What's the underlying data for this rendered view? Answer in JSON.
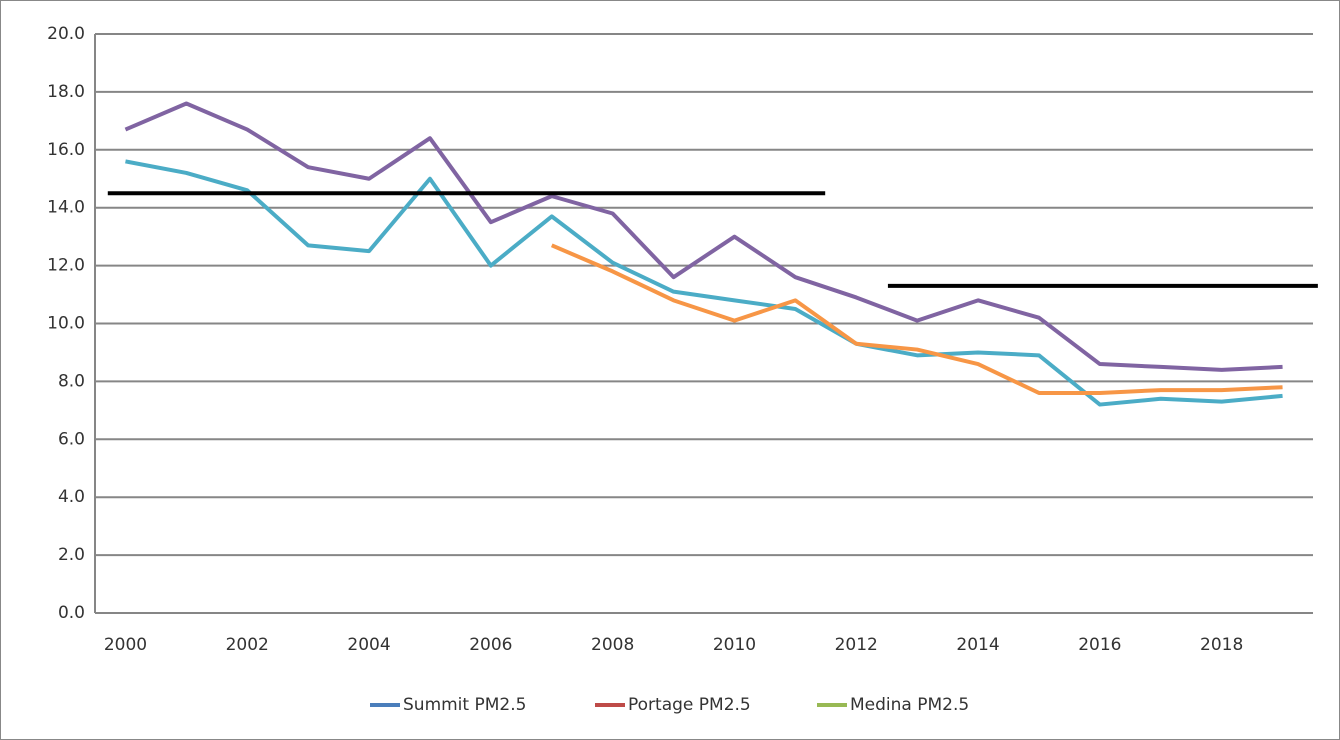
{
  "chart_data": {
    "type": "line",
    "x": [
      2000,
      2001,
      2002,
      2003,
      2004,
      2005,
      2006,
      2007,
      2008,
      2009,
      2010,
      2011,
      2012,
      2013,
      2014,
      2015,
      2016,
      2017,
      2018,
      2019
    ],
    "xlim": [
      1999.5,
      2019.5
    ],
    "xticks": [
      2000,
      2002,
      2004,
      2006,
      2008,
      2010,
      2012,
      2014,
      2016,
      2018
    ],
    "ylim": [
      0,
      20
    ],
    "yticks": [
      {
        "value": 0,
        "label": "0.0"
      },
      {
        "value": 2,
        "label": "2.0"
      },
      {
        "value": 4,
        "label": "4.0"
      },
      {
        "value": 6,
        "label": "6.0"
      },
      {
        "value": 8,
        "label": "8.0"
      },
      {
        "value": 10,
        "label": "10.0"
      },
      {
        "value": 12,
        "label": "12.0"
      },
      {
        "value": 14,
        "label": "14.0"
      },
      {
        "value": 16,
        "label": "16.0"
      },
      {
        "value": 18,
        "label": "18.0"
      },
      {
        "value": 20,
        "label": "20.0"
      }
    ],
    "grid": true,
    "legend": "bottom",
    "series": [
      {
        "name": "Summit PM2.5",
        "color": "#4bacc6",
        "legend_color": "#4a7ebb",
        "values": [
          15.6,
          15.2,
          14.6,
          12.7,
          12.5,
          15.0,
          12.0,
          13.7,
          12.1,
          11.1,
          10.8,
          10.5,
          9.3,
          8.9,
          9.0,
          8.9,
          7.2,
          7.4,
          7.3,
          7.5
        ]
      },
      {
        "name": "Portage PM2.5",
        "color": "#f79646",
        "legend_color": "#be4b48",
        "values": [
          null,
          null,
          null,
          null,
          null,
          null,
          null,
          12.7,
          11.8,
          10.8,
          10.1,
          10.8,
          9.3,
          9.1,
          8.6,
          7.6,
          7.6,
          7.7,
          7.7,
          7.8
        ]
      },
      {
        "name": "Medina PM2.5",
        "color": "#8064a2",
        "legend_color": "#98b954",
        "values": [
          16.7,
          17.6,
          16.7,
          15.4,
          15.0,
          16.4,
          13.5,
          14.4,
          13.8,
          11.6,
          13.0,
          11.6,
          10.9,
          10.1,
          10.8,
          10.2,
          8.6,
          8.5,
          8.4,
          8.5
        ]
      }
    ],
    "reference_lines": [
      {
        "value": 14.5,
        "x": [
          1999.71,
          2011.49
        ],
        "color": "#000000"
      },
      {
        "value": 11.3,
        "x": [
          2012.52,
          2019.58
        ],
        "color": "#000000"
      }
    ]
  }
}
